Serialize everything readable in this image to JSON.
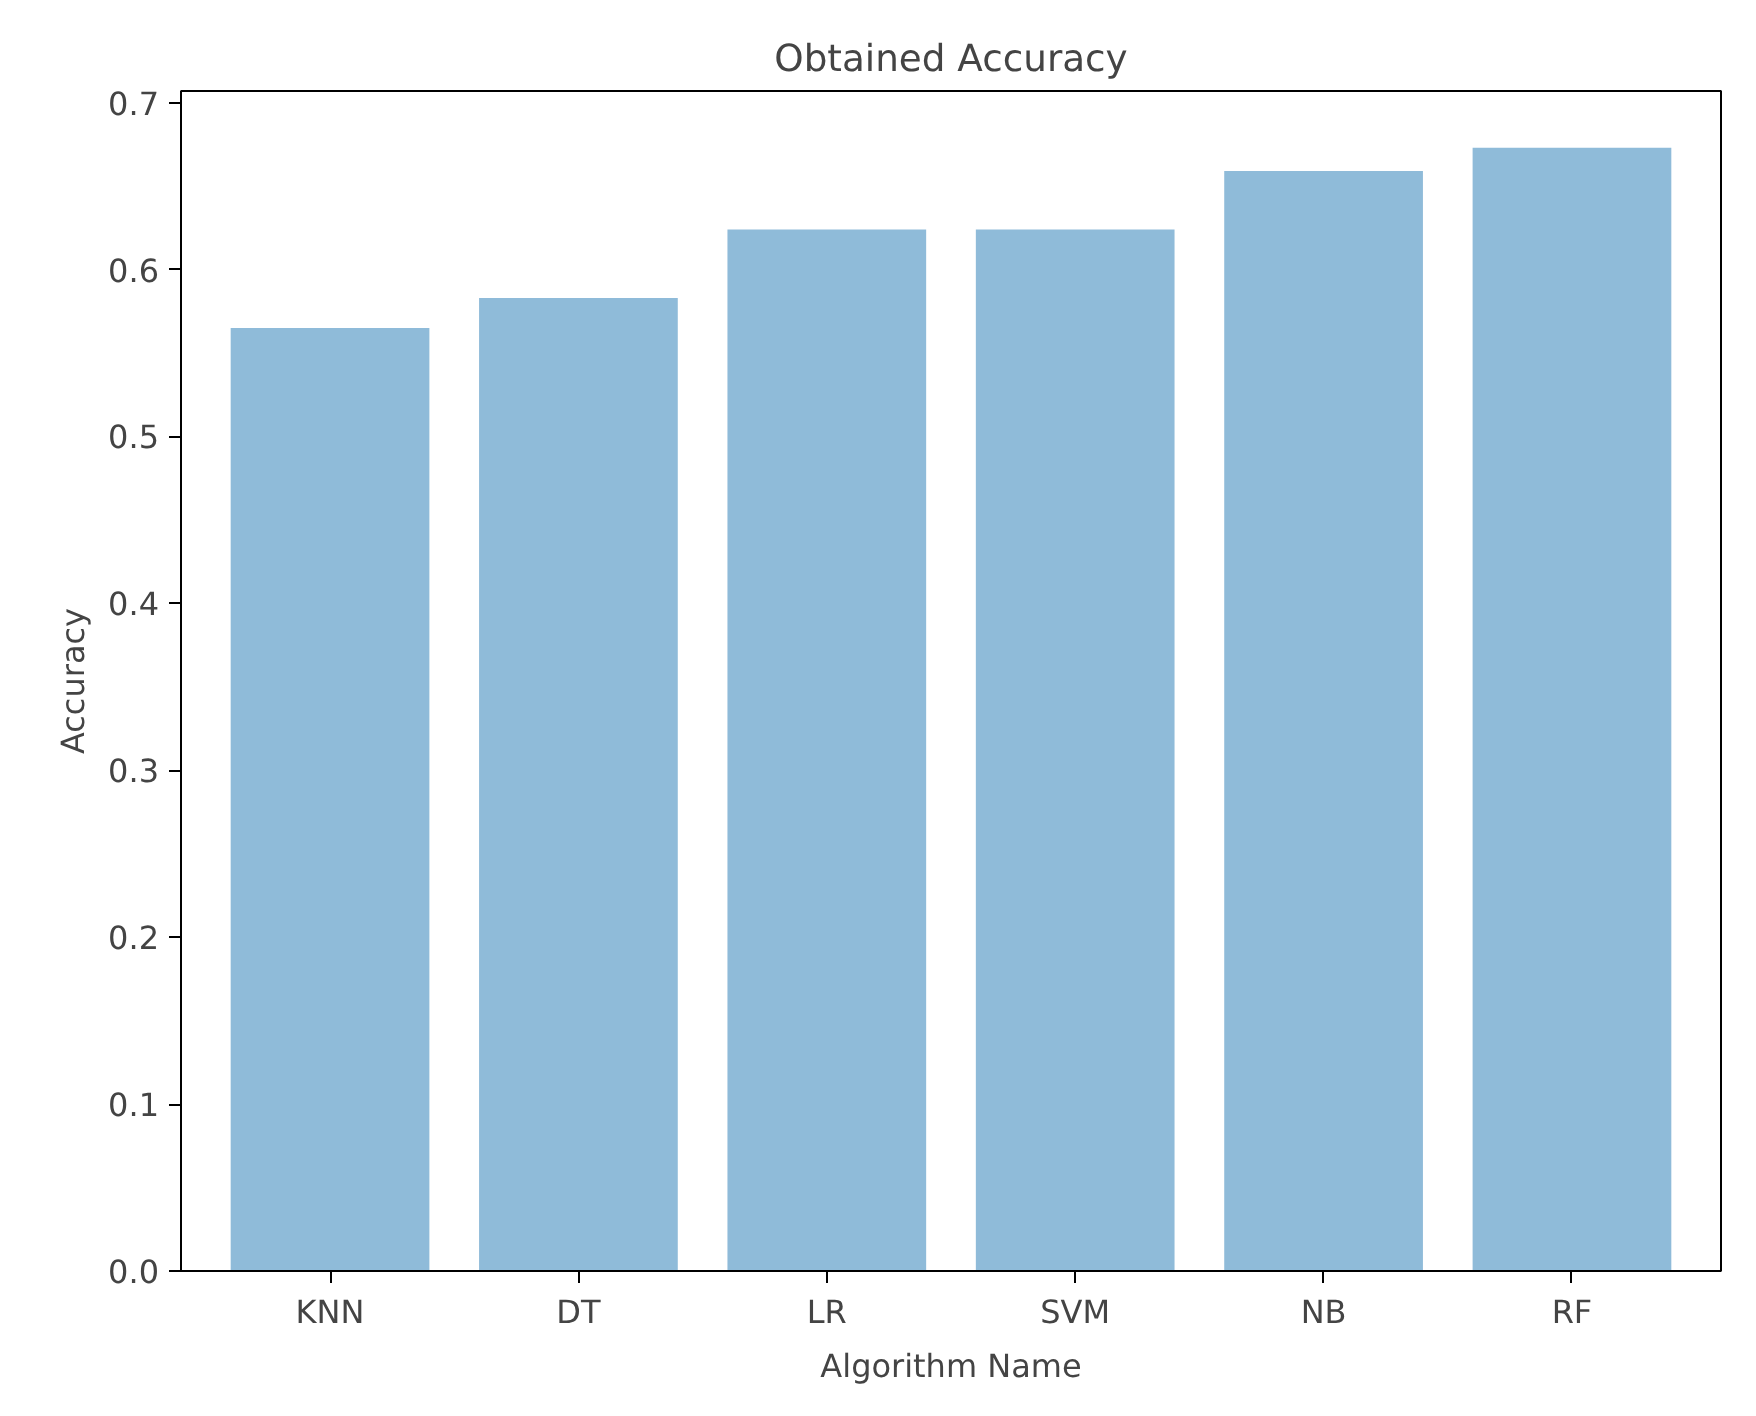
{
  "chart_data": {
    "type": "bar",
    "title": "Obtained Accuracy",
    "xlabel": "Algorithm Name",
    "ylabel": "Accuracy",
    "categories": [
      "KNN",
      "DT",
      "LR",
      "SVM",
      "NB",
      "RF"
    ],
    "values": [
      0.565,
      0.583,
      0.624,
      0.624,
      0.659,
      0.673
    ],
    "color": "#8fbbd9",
    "ylim": [
      0,
      0.707
    ],
    "yticks": [
      {
        "value": 0,
        "label": "0.0"
      },
      0.1,
      0.2,
      0.3,
      0.4,
      0.5,
      0.6,
      0.7
    ],
    "grid": false
  }
}
